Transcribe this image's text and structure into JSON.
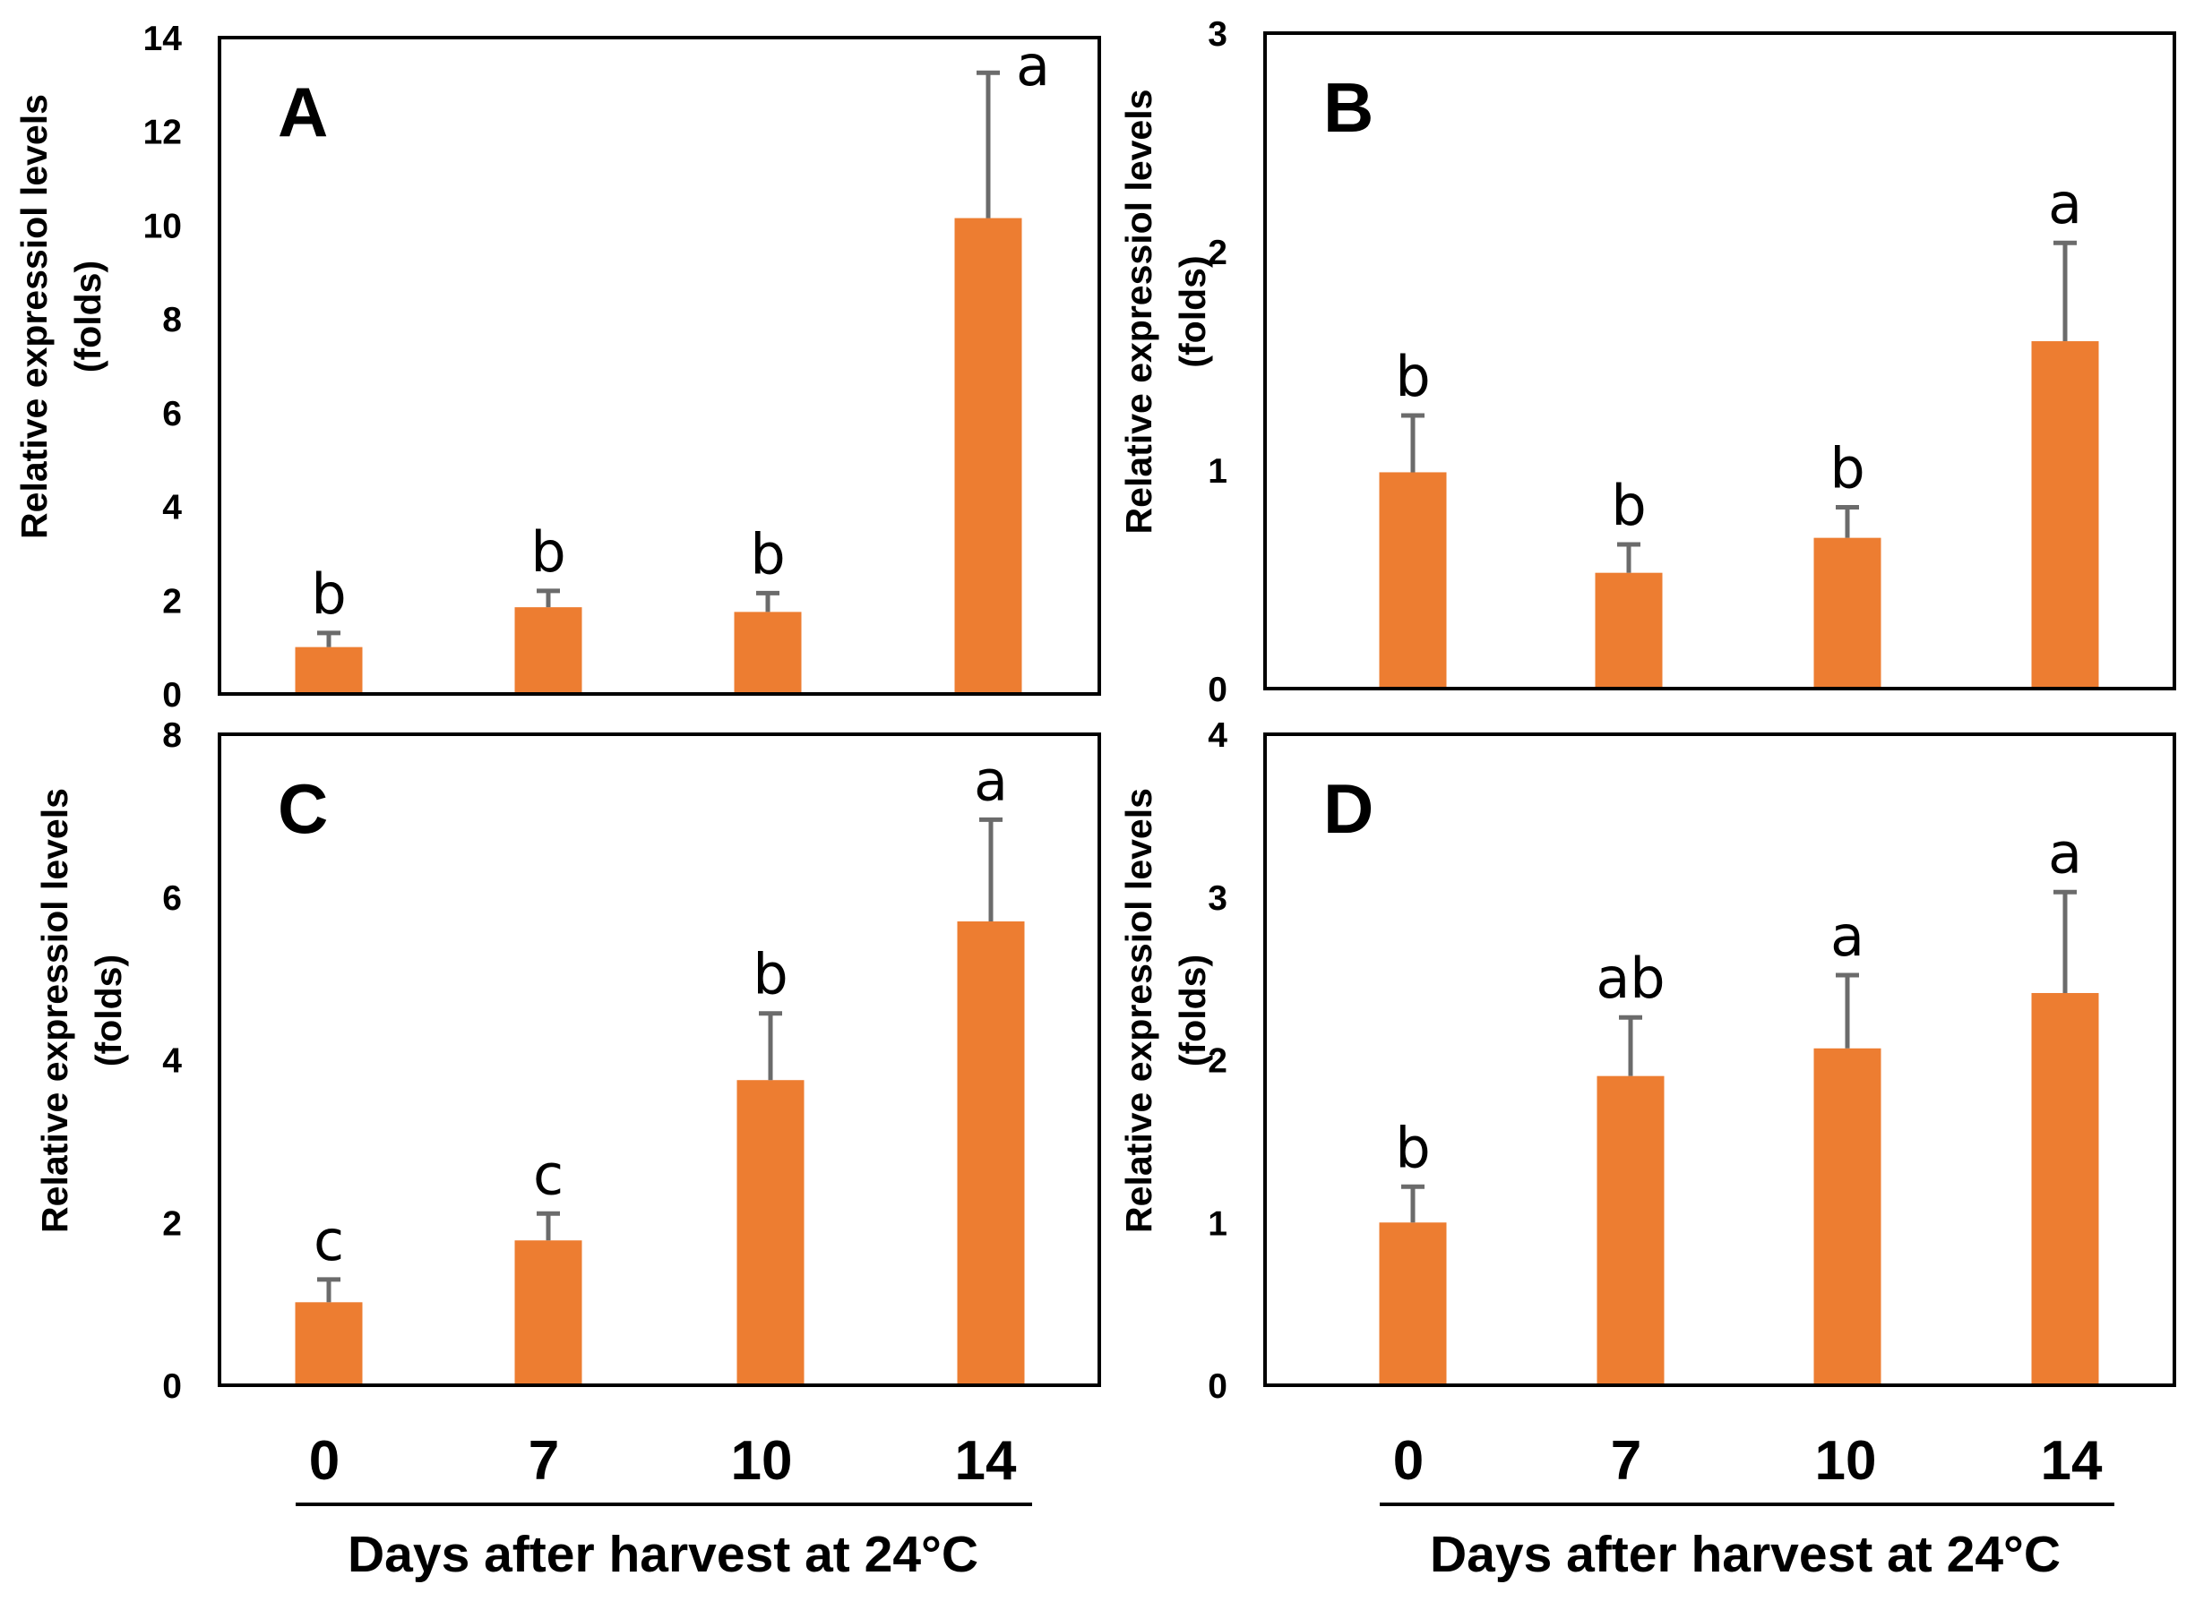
{
  "figure": {
    "bar_color": "#ED7D31",
    "error_color": "#6b6b6b",
    "x_title": "Days after harvest at 24°C",
    "x_categories": [
      "0",
      "7",
      "10",
      "14"
    ]
  },
  "chart_data": [
    {
      "type": "bar",
      "panel": "A",
      "categories": [
        "0",
        "7",
        "10",
        "14"
      ],
      "values": [
        1.0,
        1.85,
        1.75,
        10.15
      ],
      "errors": [
        0.3,
        0.35,
        0.4,
        3.1
      ],
      "significance": [
        "b",
        "b",
        "b",
        "a"
      ],
      "ylabel_line1": "Relative expressiol levels",
      "ylabel_line2": "(folds)",
      "ylim": [
        0,
        14
      ],
      "yticks": [
        0,
        2,
        4,
        6,
        8,
        10,
        12,
        14
      ]
    },
    {
      "type": "bar",
      "panel": "B",
      "categories": [
        "0",
        "7",
        "10",
        "14"
      ],
      "values": [
        0.99,
        0.53,
        0.69,
        1.59
      ],
      "errors": [
        0.26,
        0.13,
        0.14,
        0.45
      ],
      "significance": [
        "b",
        "b",
        "b",
        "a"
      ],
      "ylabel_line1": "Relative expressiol levels",
      "ylabel_line2": "(folds)",
      "ylim": [
        0,
        3
      ],
      "yticks": [
        0,
        1,
        2,
        3
      ]
    },
    {
      "type": "bar",
      "panel": "C",
      "categories": [
        "0",
        "7",
        "10",
        "14"
      ],
      "values": [
        1.02,
        1.78,
        3.75,
        5.7
      ],
      "errors": [
        0.28,
        0.33,
        0.82,
        1.25
      ],
      "significance": [
        "c",
        "c",
        "b",
        "a"
      ],
      "ylabel_line1": "Relative expressiol levels",
      "ylabel_line2": "(folds)",
      "ylim": [
        0,
        8
      ],
      "yticks": [
        0,
        2,
        4,
        6,
        8
      ]
    },
    {
      "type": "bar",
      "panel": "D",
      "categories": [
        "0",
        "7",
        "10",
        "14"
      ],
      "values": [
        1.0,
        1.9,
        2.07,
        2.41
      ],
      "errors": [
        0.22,
        0.36,
        0.45,
        0.62
      ],
      "significance": [
        "b",
        "ab",
        "a",
        "a"
      ],
      "ylabel_line1": "Relative expressiol levels",
      "ylabel_line2": "(folds)",
      "ylim": [
        0,
        4
      ],
      "yticks": [
        0,
        1,
        2,
        3,
        4
      ]
    }
  ]
}
